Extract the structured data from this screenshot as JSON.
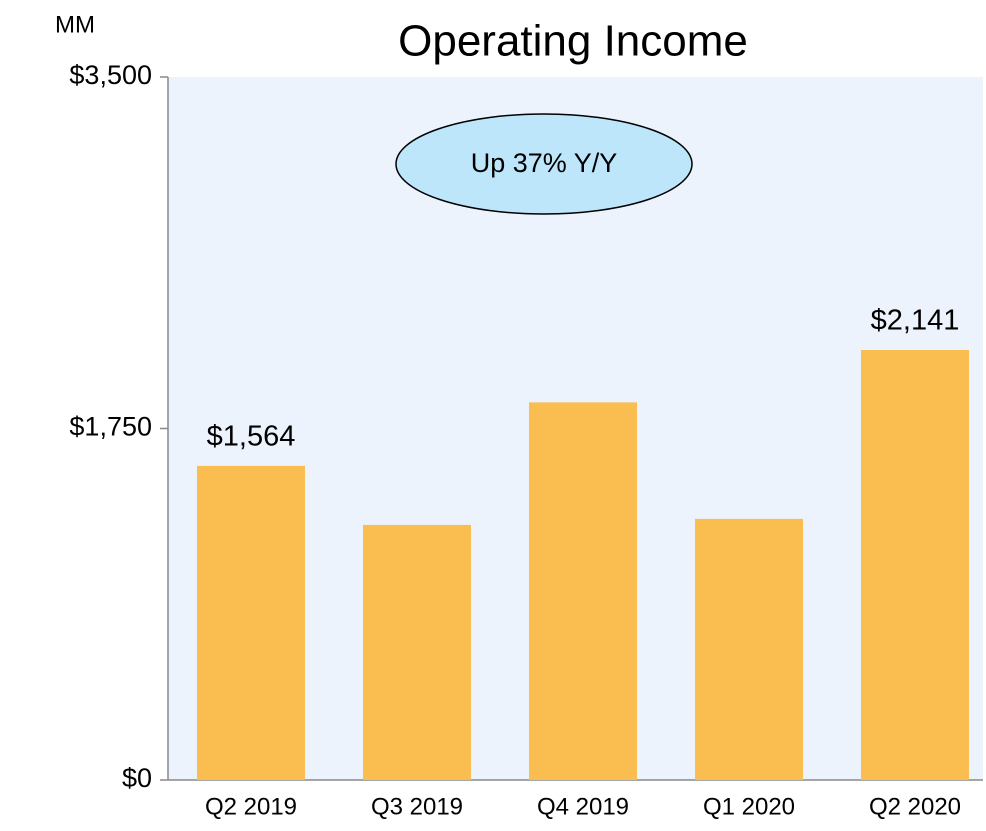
{
  "chart_data": {
    "type": "bar",
    "title": "Operating Income",
    "unit_label": "MM",
    "categories": [
      "Q2 2019",
      "Q3 2019",
      "Q4 2019",
      "Q1 2020",
      "Q2 2020"
    ],
    "values": [
      1564,
      1270,
      1880,
      1300,
      2141
    ],
    "value_labels": [
      "$1,564",
      null,
      null,
      null,
      "$2,141"
    ],
    "color": "#f9be4f",
    "ylim": [
      0,
      3500
    ],
    "yticks": [
      {
        "value": 0,
        "label": "$0"
      },
      {
        "value": 1750,
        "label": "$1,750"
      },
      {
        "value": 3500,
        "label": "$3,500"
      }
    ],
    "annotation": "Up 37% Y/Y"
  }
}
